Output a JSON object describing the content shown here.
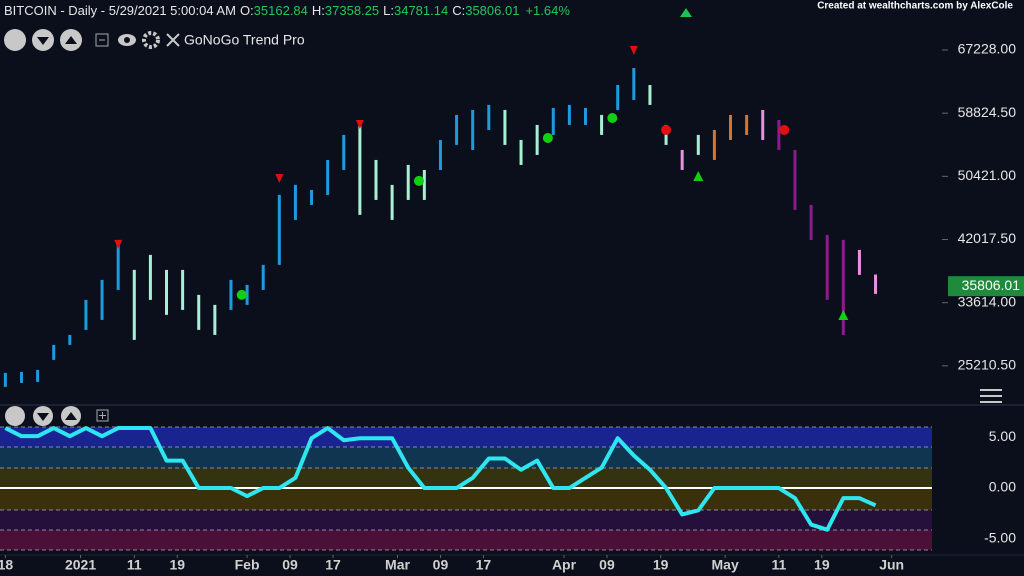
{
  "chart_data": [
    {
      "type": "ohlc",
      "title": "BITCOIN - Daily - 5/29/2021 5:00:04 AM",
      "ohlc_labels": [
        "O:",
        "H:",
        "L:",
        "C:"
      ],
      "ohlc_values": [
        35162.84,
        37358.25,
        34781.14,
        35806.01
      ],
      "change": {
        "value": 1.64,
        "label": "+1.64%"
      },
      "credit": "Created at wealthcharts.com by AlexCole",
      "indicator": "GoNoGo Trend Pro",
      "x": [
        "2020-12-18",
        "2020-12-21",
        "2020-12-24",
        "2020-12-27",
        "2020-12-30",
        "2021-01-02",
        "2021-01-05",
        "2021-01-08",
        "2021-01-11",
        "2021-01-14",
        "2021-01-17",
        "2021-01-20",
        "2021-01-23",
        "2021-01-26",
        "2021-01-29",
        "2021-02-01",
        "2021-02-04",
        "2021-02-07",
        "2021-02-10",
        "2021-02-13",
        "2021-02-16",
        "2021-02-19",
        "2021-02-22",
        "2021-02-25",
        "2021-02-28",
        "2021-03-03",
        "2021-03-06",
        "2021-03-09",
        "2021-03-12",
        "2021-03-15",
        "2021-03-18",
        "2021-03-21",
        "2021-03-24",
        "2021-03-27",
        "2021-03-30",
        "2021-04-02",
        "2021-04-05",
        "2021-04-08",
        "2021-04-11",
        "2021-04-14",
        "2021-04-17",
        "2021-04-20",
        "2021-04-23",
        "2021-04-26",
        "2021-04-29",
        "2021-05-02",
        "2021-05-05",
        "2021-05-08",
        "2021-05-11",
        "2021-05-14",
        "2021-05-17",
        "2021-05-20",
        "2021-05-23",
        "2021-05-26",
        "2021-05-29"
      ],
      "high": [
        24270,
        24400,
        24670,
        27990,
        29320,
        33980,
        36640,
        41560,
        37970,
        39970,
        37970,
        37970,
        34650,
        33320,
        36640,
        35980,
        38640,
        47950,
        49280,
        48610,
        52600,
        55930,
        57920,
        52600,
        49280,
        51940,
        51270,
        55260,
        58590,
        59250,
        59920,
        59250,
        55260,
        57260,
        59520,
        59920,
        59520,
        58590,
        62570,
        64830,
        62570,
        57260,
        53930,
        55930,
        56590,
        58590,
        58590,
        59250,
        57920,
        53930,
        46620,
        42630,
        41960,
        40630,
        37358.25
      ],
      "low": [
        22410,
        22940,
        23070,
        26000,
        27990,
        29990,
        31320,
        35310,
        28660,
        33980,
        31990,
        32650,
        29990,
        29320,
        32650,
        33320,
        35310,
        38640,
        44620,
        46620,
        47950,
        51270,
        45290,
        47280,
        44620,
        47280,
        47280,
        51270,
        54600,
        53930,
        56590,
        54600,
        51940,
        53270,
        55930,
        57260,
        57260,
        55930,
        59250,
        60580,
        59920,
        54600,
        51270,
        53270,
        52600,
        55260,
        55930,
        55260,
        53930,
        45950,
        41960,
        33980,
        29320,
        37310,
        34781.14
      ],
      "colors": [
        "#1e9be0",
        "#1e9be0",
        "#1e9be0",
        "#1e9be0",
        "#1e9be0",
        "#1e9be0",
        "#1e9be0",
        "#1e9be0",
        "#a8f0d4",
        "#a8f0d4",
        "#a8f0d4",
        "#a8f0d4",
        "#a8f0d4",
        "#a8f0d4",
        "#1e9be0",
        "#1e9be0",
        "#1e9be0",
        "#1e9be0",
        "#1e9be0",
        "#1e9be0",
        "#1e9be0",
        "#1e9be0",
        "#a8f0d4",
        "#a8f0d4",
        "#a8f0d4",
        "#a8f0d4",
        "#a8f0d4",
        "#1e9be0",
        "#1e9be0",
        "#1e9be0",
        "#1e9be0",
        "#a8f0d4",
        "#a8f0d4",
        "#a8f0d4",
        "#1e9be0",
        "#1e9be0",
        "#1e9be0",
        "#a8f0d4",
        "#1e9be0",
        "#1e9be0",
        "#a8f0d4",
        "#a8f0d4",
        "#ee8ee0",
        "#a8f0d4",
        "#d9742a",
        "#d9742a",
        "#d9742a",
        "#ee8ee0",
        "#8c1c8c",
        "#8c1c8c",
        "#8c1c8c",
        "#8c1c8c",
        "#8c1c8c",
        "#ee8ee0",
        "#ee8ee0"
      ],
      "signals": {
        "x": [
          "2021-01-08",
          "2021-01-31",
          "2021-02-07",
          "2021-02-22",
          "2021-03-05",
          "2021-03-29",
          "2021-04-10",
          "2021-04-14",
          "2021-04-20",
          "2021-04-26",
          "2021-05-12",
          "2021-05-23"
        ],
        "y": [
          41430,
          34650,
          50200,
          57390,
          49810,
          55520,
          58180,
          67228,
          56590,
          50470,
          56590,
          31980
        ],
        "shape": [
          "triangle-down",
          "dot",
          "triangle-down",
          "triangle-down",
          "dot",
          "dot",
          "dot",
          "triangle-down",
          "dot",
          "triangle-up",
          "dot",
          "triangle-up"
        ],
        "color": [
          "#e01010",
          "#10d010",
          "#e01010",
          "#e01010",
          "#10d010",
          "#10d010",
          "#10d010",
          "#e01010",
          "#e01010",
          "#10d010",
          "#e01010",
          "#10d010"
        ]
      },
      "xlim": [
        "2020-12-17",
        "2021-06-10"
      ],
      "ylim": [
        20000,
        73880
      ],
      "yticks": [
        {
          "value": 67228,
          "label": "67228.00"
        },
        {
          "value": 58824.5,
          "label": "58824.50"
        },
        {
          "value": 50421,
          "label": "50421.00"
        },
        {
          "value": 42017.5,
          "label": "42017.50"
        },
        {
          "value": 33614,
          "label": "33614.00"
        },
        {
          "value": 25210.5,
          "label": "25210.50"
        }
      ]
    },
    {
      "type": "line",
      "color": "#2ee6f0",
      "x": [
        "2020-12-18",
        "2020-12-21",
        "2020-12-24",
        "2020-12-27",
        "2020-12-30",
        "2021-01-02",
        "2021-01-05",
        "2021-01-08",
        "2021-01-11",
        "2021-01-14",
        "2021-01-17",
        "2021-01-20",
        "2021-01-23",
        "2021-01-26",
        "2021-01-29",
        "2021-02-01",
        "2021-02-04",
        "2021-02-07",
        "2021-02-10",
        "2021-02-13",
        "2021-02-16",
        "2021-02-19",
        "2021-02-22",
        "2021-02-25",
        "2021-02-28",
        "2021-03-03",
        "2021-03-06",
        "2021-03-09",
        "2021-03-12",
        "2021-03-15",
        "2021-03-18",
        "2021-03-21",
        "2021-03-24",
        "2021-03-27",
        "2021-03-30",
        "2021-04-02",
        "2021-04-05",
        "2021-04-08",
        "2021-04-11",
        "2021-04-14",
        "2021-04-17",
        "2021-04-20",
        "2021-04-23",
        "2021-04-26",
        "2021-04-29",
        "2021-05-02",
        "2021-05-05",
        "2021-05-08",
        "2021-05-11",
        "2021-05-14",
        "2021-05-17",
        "2021-05-20",
        "2021-05-23",
        "2021-05-26",
        "2021-05-29"
      ],
      "values": [
        5.9,
        5.1,
        5.1,
        5.9,
        5.1,
        5.9,
        5.1,
        5.9,
        5.9,
        5.9,
        2.7,
        2.7,
        0,
        0,
        0,
        -0.8,
        0,
        0,
        1,
        4.9,
        5.9,
        4.7,
        4.9,
        4.9,
        4.9,
        2,
        0,
        0,
        0,
        1,
        2.9,
        2.9,
        1.8,
        2.7,
        0,
        0,
        1,
        2,
        4.9,
        3.2,
        1.8,
        0,
        -2.6,
        -2.2,
        0,
        0,
        0,
        0,
        0,
        -1,
        -3.6,
        -4.1,
        -1,
        -1,
        -1.7
      ],
      "xlim": [
        "2020-12-17",
        "2021-06-10"
      ],
      "ylim": [
        -6.1,
        6.2
      ],
      "yticks": [
        {
          "value": 5,
          "label": "5.00"
        },
        {
          "value": 0,
          "label": "0.00"
        },
        {
          "value": -5,
          "label": "-5.00"
        }
      ],
      "xticks": [
        {
          "value": "2020-12-18",
          "label": "18"
        },
        {
          "value": "2021-01-01",
          "label": "2021"
        },
        {
          "value": "2021-01-11",
          "label": "11"
        },
        {
          "value": "2021-01-19",
          "label": "19"
        },
        {
          "value": "2021-02-01",
          "label": "Feb"
        },
        {
          "value": "2021-02-09",
          "label": "09"
        },
        {
          "value": "2021-02-17",
          "label": "17"
        },
        {
          "value": "2021-03-01",
          "label": "Mar"
        },
        {
          "value": "2021-03-09",
          "label": "09"
        },
        {
          "value": "2021-03-17",
          "label": "17"
        },
        {
          "value": "2021-04-01",
          "label": "Apr"
        },
        {
          "value": "2021-04-09",
          "label": "09"
        },
        {
          "value": "2021-04-19",
          "label": "19"
        },
        {
          "value": "2021-05-01",
          "label": "May"
        },
        {
          "value": "2021-05-11",
          "label": "11"
        },
        {
          "value": "2021-05-19",
          "label": "19"
        },
        {
          "value": "2021-06-01",
          "label": "Jun"
        }
      ]
    }
  ]
}
